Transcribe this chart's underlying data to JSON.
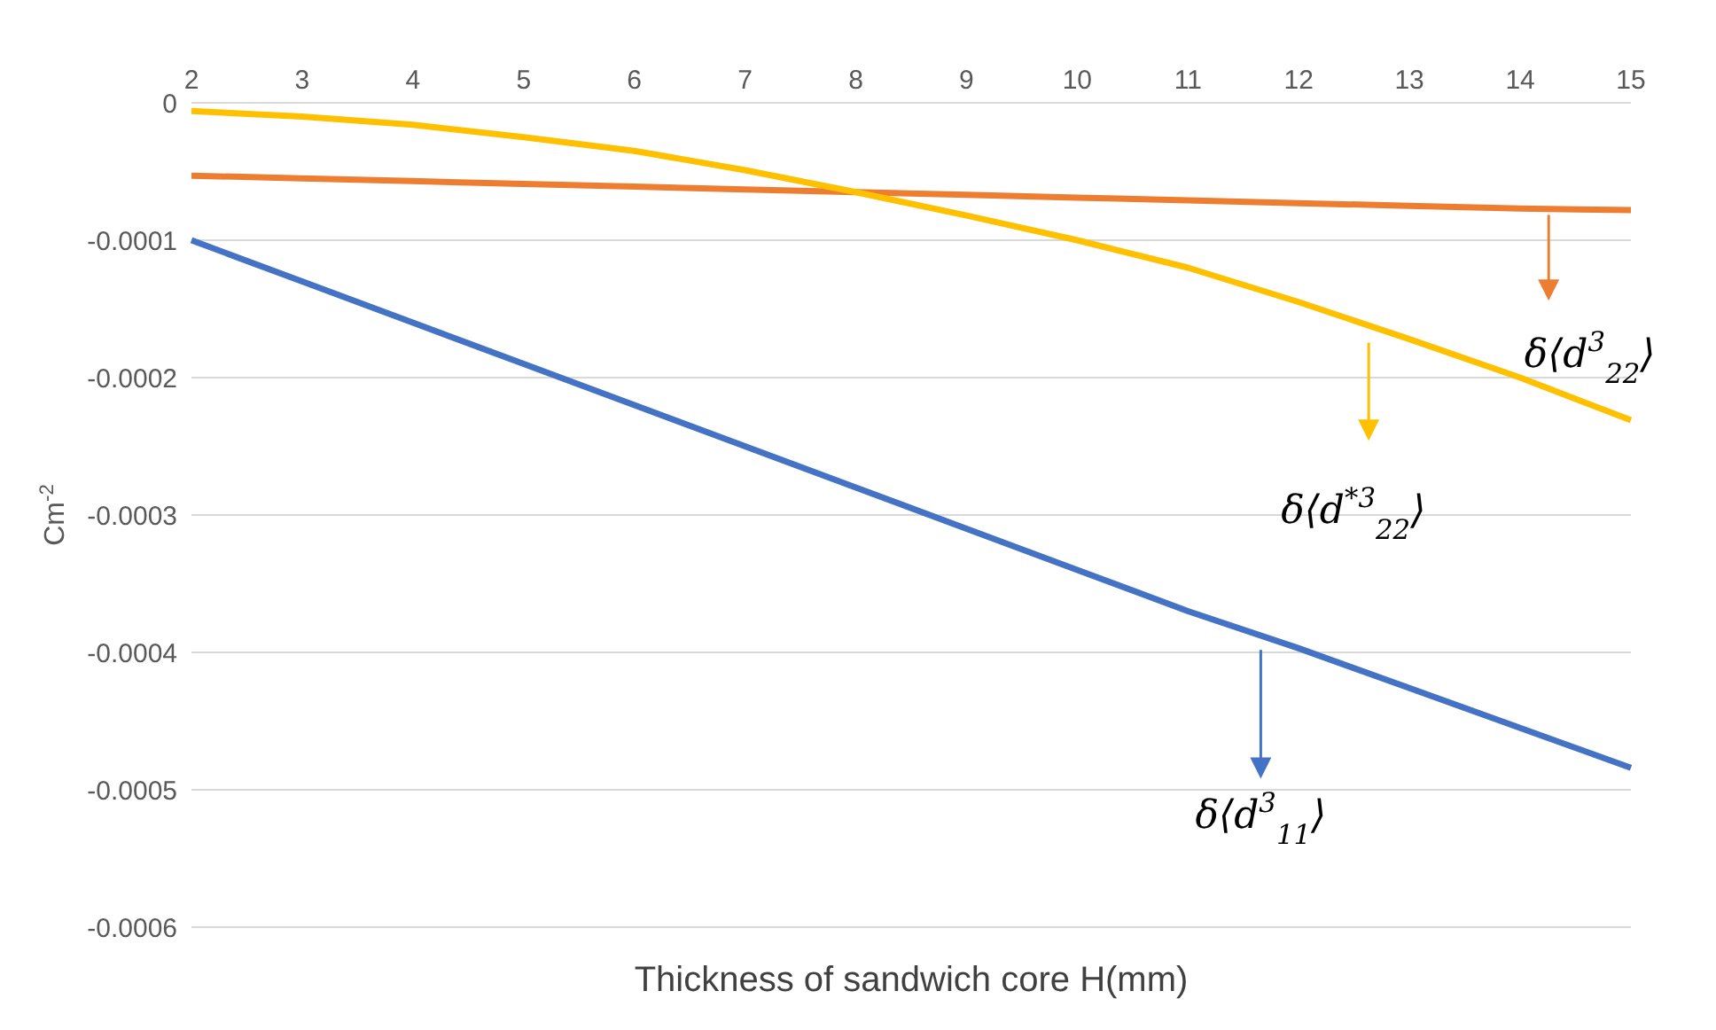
{
  "chart_data": {
    "type": "line",
    "xlabel": "Thickness of sandwich core H(mm)",
    "ylabel": "Cm$^{-2}$",
    "categories": [
      "2",
      "3",
      "4",
      "5",
      "6",
      "7",
      "8",
      "9",
      "10",
      "11",
      "12",
      "13",
      "14",
      "15"
    ],
    "series": [
      {
        "name": "δ⟨d$^{3}$$_{22}$⟩",
        "color": "#ed7d31",
        "values": [
          -5.3e-05,
          -5.5e-05,
          -5.7e-05,
          -5.9e-05,
          -6.1e-05,
          -6.3e-05,
          -6.5e-05,
          -6.7e-05,
          -6.9e-05,
          -7.1e-05,
          -7.3e-05,
          -7.5e-05,
          -7.7e-05,
          -7.8e-05
        ]
      },
      {
        "name": "δ⟨d$^{*3}$$_{22}$⟩",
        "color": "#ffc000",
        "values": [
          -6e-06,
          -1e-05,
          -1.6e-05,
          -2.5e-05,
          -3.5e-05,
          -4.9e-05,
          -6.5e-05,
          -8.2e-05,
          -0.0001,
          -0.00012,
          -0.000145,
          -0.000172,
          -0.0002,
          -0.000231
        ]
      },
      {
        "name": "δ⟨d$^{3}$$_{11}$⟩",
        "color": "#4472c4",
        "values": [
          -0.0001,
          -0.00013,
          -0.00016,
          -0.00019,
          -0.00022,
          -0.00025,
          -0.00028,
          -0.00031,
          -0.00034,
          -0.00037,
          -0.000397,
          -0.000426,
          -0.000455,
          -0.000484
        ]
      }
    ],
    "ylim": [
      -0.0006,
      0
    ],
    "yticks": [
      0,
      -0.0001,
      -0.0002,
      -0.0003,
      -0.0004,
      -0.0005,
      -0.0006
    ],
    "grid": "y",
    "legend": "right",
    "marker": "none",
    "line_style": "solid"
  }
}
